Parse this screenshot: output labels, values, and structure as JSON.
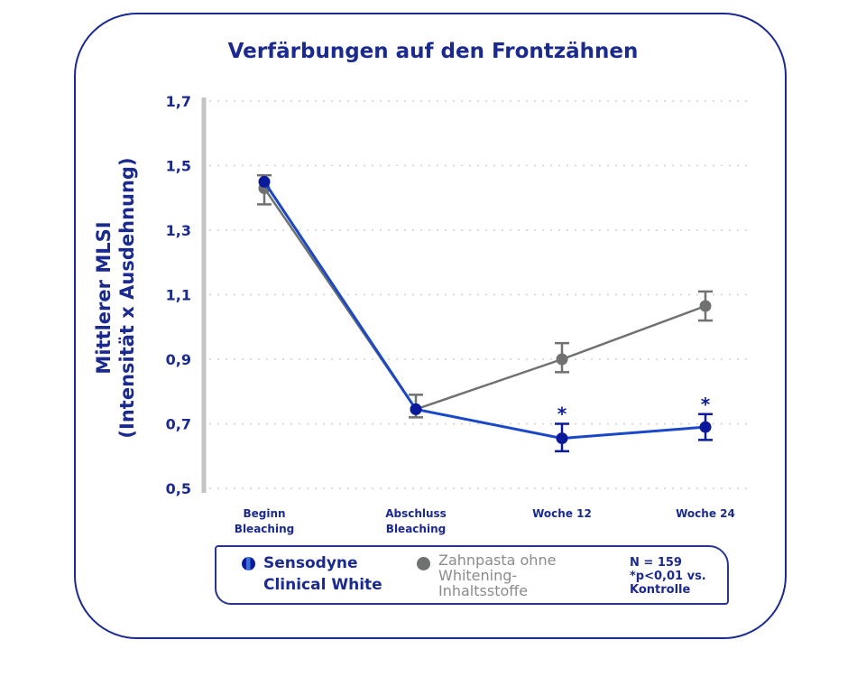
{
  "chart_data": {
    "type": "line",
    "title": "Verfärbungen auf den Frontzähnen",
    "ylabel_line1": "Mittlerer MLSI",
    "ylabel_line2": "(Intensität x Ausdehnung)",
    "ylim": [
      0.5,
      1.7
    ],
    "yticks": [
      "1,7",
      "1,5",
      "1,3",
      "1,1",
      "0,9",
      "0,7",
      "0,5"
    ],
    "ytick_values": [
      1.7,
      1.5,
      1.3,
      1.1,
      0.9,
      0.7,
      0.5
    ],
    "grid": "horizontal dotted",
    "categories": [
      [
        "Beginn",
        "Bleaching"
      ],
      [
        "Abschluss",
        "Bleaching"
      ],
      [
        "Woche 12"
      ],
      [
        "Woche 24"
      ]
    ],
    "series": [
      {
        "name": "Zahnpasta ohne Whitening-Inhaltsstoffe",
        "color": "#6f7271",
        "values": [
          1.43,
          0.745,
          0.9,
          1.065
        ],
        "err_low": [
          1.38,
          0.72,
          0.86,
          1.02
        ],
        "err_high": [
          1.47,
          0.79,
          0.95,
          1.11
        ],
        "significance": [
          "",
          "",
          "",
          ""
        ]
      },
      {
        "name": "Sensodyne Clinical White",
        "color": "#0a1a9a",
        "values": [
          1.45,
          0.745,
          0.655,
          0.69
        ],
        "err_low": [
          1.44,
          0.74,
          0.615,
          0.65
        ],
        "err_high": [
          1.46,
          0.75,
          0.7,
          0.73
        ],
        "significance": [
          "",
          "",
          "*",
          "*"
        ]
      }
    ]
  },
  "legend": {
    "placement": "bottom",
    "series1_line1": "Sensodyne",
    "series1_line2": "Clinical White",
    "series2_line1": "Zahnpasta ohne",
    "series2_line2": "Whitening-",
    "series2_line3": "Inhaltsstoffe",
    "note_line1": "N = 159",
    "note_line2": "*p<0,01 vs.",
    "note_line3": "Kontrolle"
  }
}
